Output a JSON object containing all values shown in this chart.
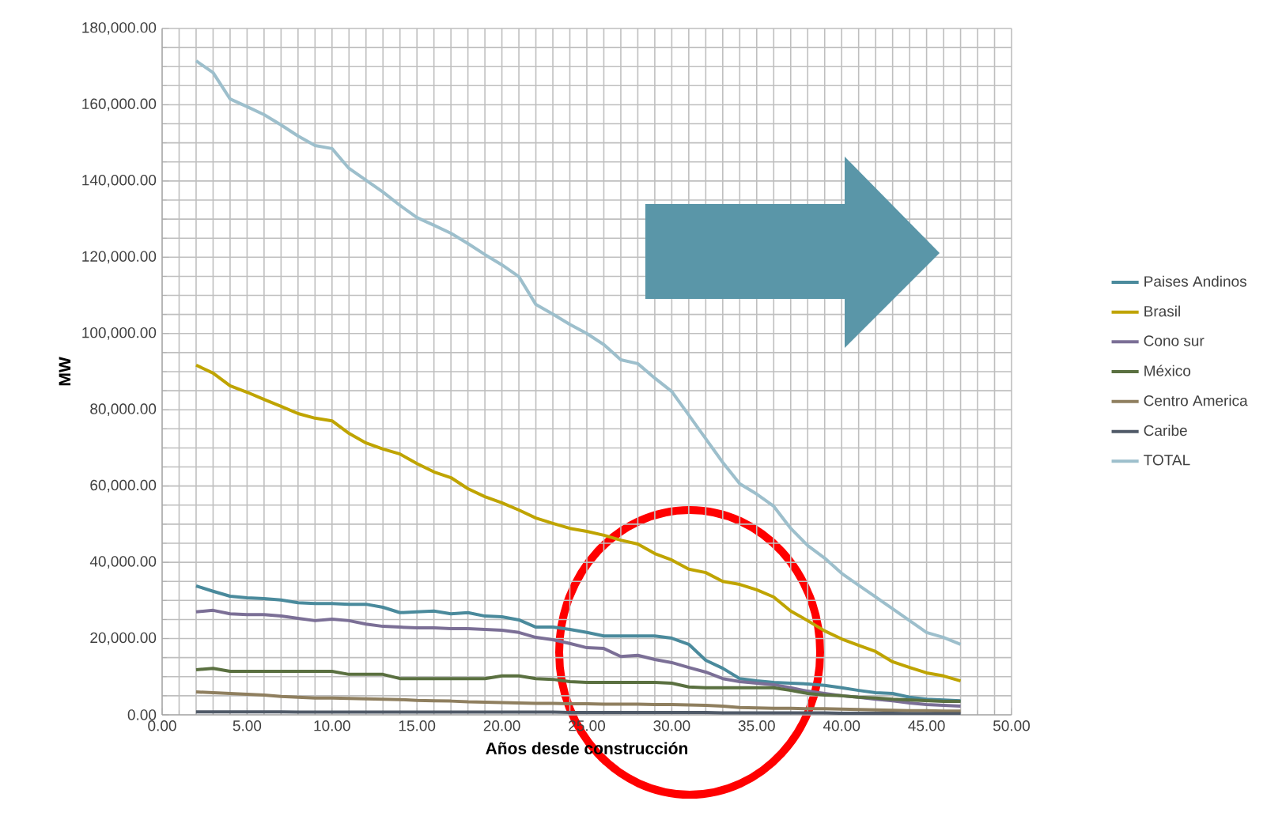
{
  "chart_data": {
    "type": "line",
    "xlabel": "Años desde construcción",
    "ylabel": "MW",
    "x": [
      2,
      3,
      4,
      5,
      6,
      7,
      8,
      9,
      10,
      11,
      12,
      13,
      14,
      15,
      16,
      17,
      18,
      19,
      20,
      21,
      22,
      23,
      24,
      25,
      26,
      27,
      28,
      29,
      30,
      31,
      32,
      33,
      34,
      35,
      36,
      37,
      38,
      39,
      40,
      41,
      42,
      43,
      44,
      45,
      46,
      47
    ],
    "series": [
      {
        "name": "Paises Andinos",
        "color": "#4a8a9c",
        "values": [
          33800,
          32400,
          31100,
          30700,
          30500,
          30100,
          29400,
          29200,
          29200,
          29000,
          29000,
          28200,
          26800,
          27000,
          27200,
          26500,
          26800,
          25900,
          25700,
          24900,
          23000,
          23000,
          22400,
          21600,
          20700,
          20700,
          20700,
          20700,
          20100,
          18500,
          14300,
          12200,
          9500,
          8900,
          8500,
          8300,
          8100,
          7700,
          7100,
          6400,
          5800,
          5600,
          4600,
          4100,
          3900,
          3700
        ]
      },
      {
        "name": "Brasil",
        "color": "#bfa400",
        "values": [
          91700,
          89600,
          86300,
          84600,
          82700,
          80900,
          79000,
          77800,
          77100,
          73800,
          71300,
          69700,
          68400,
          65900,
          63700,
          62200,
          59300,
          57200,
          55600,
          53700,
          51600,
          50200,
          48900,
          48100,
          47100,
          45800,
          44800,
          42300,
          40600,
          38200,
          37300,
          35000,
          34200,
          32800,
          30900,
          27200,
          24700,
          22000,
          19900,
          18200,
          16600,
          13900,
          12400,
          11000,
          10200,
          8900
        ]
      },
      {
        "name": "Cono sur",
        "color": "#7b6f96",
        "values": [
          27000,
          27400,
          26500,
          26300,
          26300,
          25900,
          25300,
          24700,
          25100,
          24700,
          23800,
          23200,
          23000,
          22800,
          22800,
          22600,
          22600,
          22400,
          22200,
          21600,
          20300,
          19700,
          18700,
          17600,
          17400,
          15300,
          15600,
          14500,
          13700,
          12400,
          11200,
          9500,
          8700,
          8300,
          7900,
          7100,
          6200,
          5600,
          5000,
          4600,
          4100,
          3700,
          3100,
          2700,
          2500,
          2300
        ]
      },
      {
        "name": "México",
        "color": "#5a7040",
        "values": [
          11800,
          12200,
          11400,
          11400,
          11400,
          11400,
          11400,
          11400,
          11400,
          10600,
          10600,
          10600,
          9500,
          9500,
          9500,
          9500,
          9500,
          9500,
          10200,
          10200,
          9500,
          9300,
          8700,
          8500,
          8500,
          8500,
          8500,
          8500,
          8300,
          7300,
          7100,
          7100,
          7100,
          7100,
          7100,
          6400,
          5600,
          5200,
          5000,
          4600,
          4400,
          4100,
          3900,
          3700,
          3500,
          3500
        ]
      },
      {
        "name": "Centro America",
        "color": "#8f7f5f",
        "values": [
          6000,
          5800,
          5600,
          5400,
          5200,
          4800,
          4600,
          4400,
          4400,
          4300,
          4200,
          4100,
          4000,
          3800,
          3700,
          3600,
          3400,
          3300,
          3200,
          3100,
          3000,
          3000,
          2900,
          2900,
          2800,
          2800,
          2800,
          2700,
          2700,
          2600,
          2500,
          2300,
          1900,
          1800,
          1700,
          1700,
          1600,
          1600,
          1500,
          1400,
          1300,
          1200,
          1100,
          1100,
          1000,
          1000
        ]
      },
      {
        "name": "Caribe",
        "color": "#505a68",
        "values": [
          800,
          800,
          800,
          800,
          800,
          800,
          700,
          700,
          700,
          700,
          700,
          700,
          700,
          700,
          700,
          700,
          700,
          700,
          700,
          700,
          700,
          700,
          600,
          600,
          600,
          600,
          600,
          600,
          600,
          600,
          600,
          500,
          500,
          500,
          500,
          500,
          500,
          500,
          400,
          400,
          400,
          400,
          300,
          300,
          300,
          300
        ]
      },
      {
        "name": "TOTAL",
        "color": "#9dbfcc",
        "values": [
          171500,
          168400,
          161500,
          159500,
          157400,
          154700,
          151800,
          149300,
          148500,
          143300,
          140200,
          137100,
          133600,
          130400,
          128400,
          126300,
          123600,
          120700,
          118000,
          114900,
          107600,
          105100,
          102400,
          100000,
          97100,
          93100,
          92100,
          88300,
          84800,
          78600,
          72400,
          66200,
          60600,
          57900,
          54700,
          48900,
          44400,
          41100,
          37100,
          34000,
          30900,
          27800,
          24700,
          21600,
          20300,
          18500
        ]
      }
    ],
    "xlim": [
      0,
      50
    ],
    "xticks": [
      {
        "value": 0,
        "label": "0.00"
      },
      {
        "value": 5,
        "label": "5.00"
      },
      {
        "value": 10,
        "label": "10.00"
      },
      {
        "value": 15,
        "label": "15.00"
      },
      {
        "value": 20,
        "label": "20.00"
      },
      {
        "value": 25,
        "label": "25.00"
      },
      {
        "value": 30,
        "label": "30.00"
      },
      {
        "value": 35,
        "label": "35.00"
      },
      {
        "value": 40,
        "label": "40.00"
      },
      {
        "value": 45,
        "label": "45.00"
      },
      {
        "value": 50,
        "label": "50.00"
      }
    ],
    "ylim": [
      0,
      180000
    ],
    "yticks": [
      {
        "value": 0,
        "label": "0.00"
      },
      {
        "value": 20000,
        "label": "20,000.00"
      },
      {
        "value": 40000,
        "label": "40,000.00"
      },
      {
        "value": 60000,
        "label": "60,000.00"
      },
      {
        "value": 80000,
        "label": "80,000.00"
      },
      {
        "value": 100000,
        "label": "100,000.00"
      },
      {
        "value": 120000,
        "label": "120,000.00"
      },
      {
        "value": 140000,
        "label": "140,000.00"
      },
      {
        "value": 160000,
        "label": "160,000.00"
      },
      {
        "value": 180000,
        "label": "180,000.00"
      }
    ],
    "grid": true,
    "legend": "right",
    "line_style": "solid"
  }
}
